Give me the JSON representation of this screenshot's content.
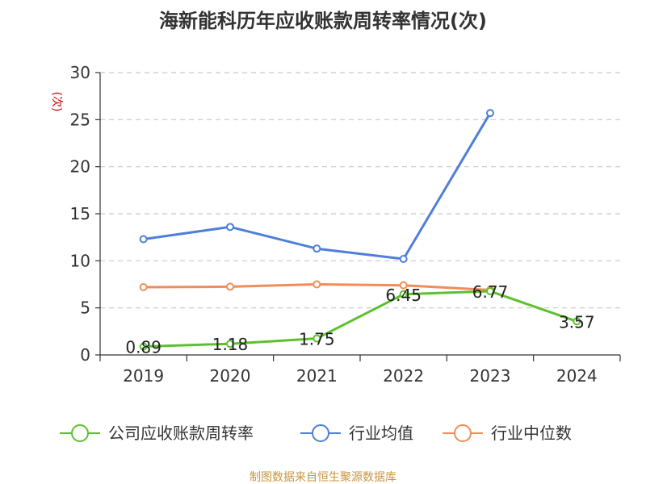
{
  "chart_data": {
    "type": "line",
    "title": "海新能科历年应收账款周转率情况(次)",
    "ylabel": "(次)",
    "xlabel": "",
    "categories": [
      "2019",
      "2020",
      "2021",
      "2022",
      "2023",
      "2024"
    ],
    "ylim": [
      0,
      30
    ],
    "yticks": [
      0,
      5,
      10,
      15,
      20,
      25,
      30
    ],
    "grid": true,
    "series": [
      {
        "name": "公司应收账款周转率",
        "color": "#5cc12c",
        "values": [
          0.89,
          1.18,
          1.75,
          6.45,
          6.77,
          3.57
        ],
        "labels": [
          "0.89",
          "1.18",
          "1.75",
          "6.45",
          "6.77",
          "3.57"
        ]
      },
      {
        "name": "行业均值",
        "color": "#4f7fd9",
        "values": [
          12.3,
          13.6,
          11.3,
          10.2,
          25.7,
          null
        ]
      },
      {
        "name": "行业中位数",
        "color": "#f08d5a",
        "values": [
          7.2,
          7.25,
          7.5,
          7.4,
          6.9,
          null
        ]
      }
    ],
    "legend_position": "bottom"
  },
  "source": "制图数据来自恒生聚源数据库"
}
